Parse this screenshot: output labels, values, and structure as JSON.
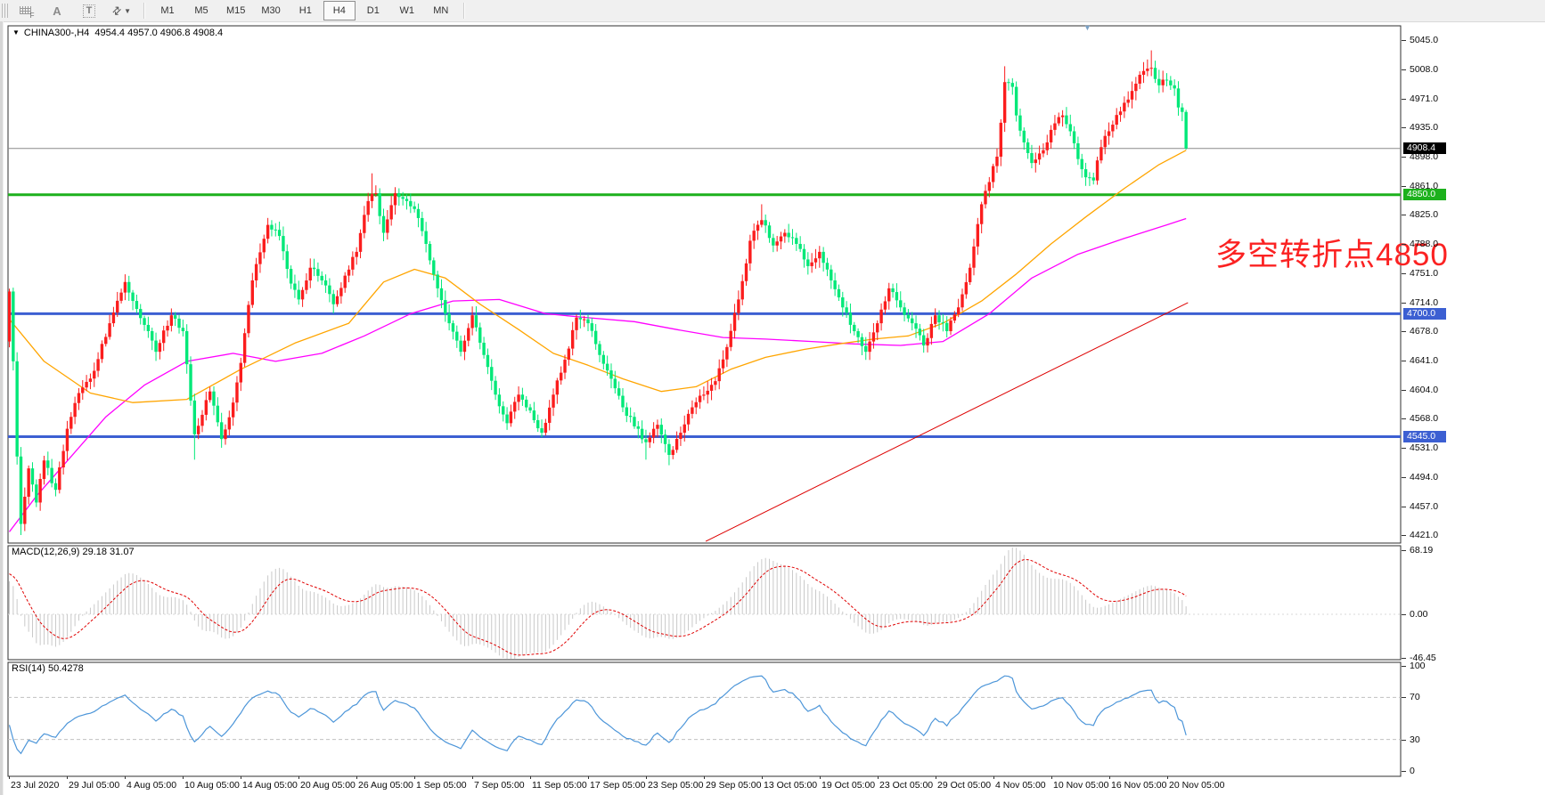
{
  "toolbar": {
    "a_label": "A",
    "t_label": "T",
    "timeframes": [
      "M1",
      "M5",
      "M15",
      "M30",
      "H1",
      "H4",
      "D1",
      "W1",
      "MN"
    ],
    "active_timeframe": "H4"
  },
  "chart": {
    "symbol": "CHINA300-,H4",
    "ohlc_text": "4954.4 4957.0 4906.8 4908.4",
    "triangle": "▼"
  },
  "annotation": {
    "text": "多空转折点4850",
    "color": "#fb2222"
  },
  "indicators": {
    "macd": {
      "label_text": "MACD(12,26,9) 29.18 31.07",
      "macd_value": 29.18,
      "signal_value": 31.07,
      "axis_labels": [
        "68.19",
        "0.00",
        "-46.45"
      ],
      "axis_values": [
        68.19,
        0,
        -46.45
      ]
    },
    "rsi": {
      "label_text": "RSI(14) 50.4278",
      "value": 50.4278,
      "axis_labels": [
        "100",
        "70",
        "30",
        "0"
      ],
      "axis_values": [
        100,
        70,
        30,
        0
      ],
      "levels": [
        70,
        30
      ]
    }
  },
  "chart_data": {
    "type": "candlestick+indicators",
    "symbol": "CHINA300",
    "period": "H4",
    "last_bar": {
      "open": 4954.4,
      "high": 4957.0,
      "low": 4906.8,
      "close": 4908.4
    },
    "y_axis_ticks": [
      "5045.0",
      "5008.0",
      "4971.0",
      "4935.0",
      "4898.0",
      "4861.0",
      "4825.0",
      "4788.0",
      "4751.0",
      "4714.0",
      "4678.0",
      "4641.0",
      "4604.0",
      "4568.0",
      "4531.0",
      "4494.0",
      "4457.0",
      "4421.0"
    ],
    "y_axis_values": [
      5045,
      5008,
      4971,
      4935,
      4898,
      4861,
      4825,
      4788,
      4751,
      4714,
      4678,
      4641,
      4604,
      4568,
      4531,
      4494,
      4457,
      4421
    ],
    "x_axis_labels": [
      "23 Jul 2020",
      "29 Jul 05:00",
      "4 Aug 05:00",
      "10 Aug 05:00",
      "14 Aug 05:00",
      "20 Aug 05:00",
      "26 Aug 05:00",
      "1 Sep 05:00",
      "7 Sep 05:00",
      "11 Sep 05:00",
      "17 Sep 05:00",
      "23 Sep 05:00",
      "29 Sep 05:00",
      "13 Oct 05:00",
      "19 Oct 05:00",
      "23 Oct 05:00",
      "29 Oct 05:00",
      "4 Nov 05:00",
      "10 Nov 05:00",
      "16 Nov 05:00",
      "20 Nov 05:00"
    ],
    "horizontal_levels": [
      {
        "price": 4850.0,
        "badge": "4850.0",
        "color": "#1db11d",
        "width": 3
      },
      {
        "price": 4700.0,
        "badge": "4700.0",
        "color": "#3c5fd2",
        "width": 3
      },
      {
        "price": 4545.0,
        "badge": "4545.0",
        "color": "#3c5fd2",
        "width": 3
      }
    ],
    "current_price_line": {
      "price": 4908.4,
      "badge": "4908.4",
      "line_color": "#8a8a8a",
      "badge_bg": "#000000"
    },
    "trendline": {
      "bar1": 180.5,
      "price1": 4413,
      "bar2": 305.5,
      "price2": 4714,
      "color": "#dd0000"
    },
    "close_path_anchors": [
      [
        0,
        4728
      ],
      [
        1,
        4640
      ],
      [
        2,
        4520
      ],
      [
        3,
        4435
      ],
      [
        5,
        4505
      ],
      [
        7,
        4462
      ],
      [
        9,
        4515
      ],
      [
        12,
        4478
      ],
      [
        15,
        4555
      ],
      [
        18,
        4600
      ],
      [
        22,
        4628
      ],
      [
        26,
        4688
      ],
      [
        30,
        4740
      ],
      [
        33,
        4706
      ],
      [
        36,
        4678
      ],
      [
        38,
        4652
      ],
      [
        42,
        4698
      ],
      [
        45,
        4678
      ],
      [
        48,
        4548
      ],
      [
        52,
        4602
      ],
      [
        55,
        4542
      ],
      [
        58,
        4588
      ],
      [
        60,
        4638
      ],
      [
        63,
        4742
      ],
      [
        67,
        4812
      ],
      [
        70,
        4798
      ],
      [
        73,
        4738
      ],
      [
        75,
        4718
      ],
      [
        78,
        4758
      ],
      [
        81,
        4742
      ],
      [
        84,
        4712
      ],
      [
        87,
        4748
      ],
      [
        90,
        4778
      ],
      [
        93,
        4842
      ],
      [
        95,
        4852
      ],
      [
        97,
        4802
      ],
      [
        100,
        4852
      ],
      [
        103,
        4842
      ],
      [
        105,
        4832
      ],
      [
        108,
        4788
      ],
      [
        111,
        4732
      ],
      [
        114,
        4688
      ],
      [
        117,
        4652
      ],
      [
        120,
        4698
      ],
      [
        123,
        4648
      ],
      [
        126,
        4598
      ],
      [
        129,
        4562
      ],
      [
        132,
        4598
      ],
      [
        135,
        4578
      ],
      [
        138,
        4550
      ],
      [
        141,
        4598
      ],
      [
        144,
        4642
      ],
      [
        147,
        4695
      ],
      [
        150,
        4688
      ],
      [
        153,
        4648
      ],
      [
        156,
        4618
      ],
      [
        159,
        4582
      ],
      [
        162,
        4558
      ],
      [
        165,
        4538
      ],
      [
        168,
        4560
      ],
      [
        171,
        4522
      ],
      [
        174,
        4550
      ],
      [
        177,
        4582
      ],
      [
        180,
        4598
      ],
      [
        183,
        4615
      ],
      [
        186,
        4658
      ],
      [
        189,
        4718
      ],
      [
        192,
        4792
      ],
      [
        195,
        4818
      ],
      [
        198,
        4786
      ],
      [
        201,
        4802
      ],
      [
        204,
        4788
      ],
      [
        207,
        4760
      ],
      [
        210,
        4778
      ],
      [
        213,
        4742
      ],
      [
        216,
        4708
      ],
      [
        219,
        4678
      ],
      [
        222,
        4652
      ],
      [
        225,
        4688
      ],
      [
        228,
        4732
      ],
      [
        231,
        4708
      ],
      [
        234,
        4688
      ],
      [
        237,
        4660
      ],
      [
        240,
        4698
      ],
      [
        243,
        4678
      ],
      [
        246,
        4708
      ],
      [
        249,
        4758
      ],
      [
        252,
        4838
      ],
      [
        254,
        4866
      ],
      [
        256,
        4898
      ],
      [
        258,
        4992
      ],
      [
        260,
        4986
      ],
      [
        261,
        4950
      ],
      [
        263,
        4916
      ],
      [
        265,
        4890
      ],
      [
        267,
        4902
      ],
      [
        269,
        4916
      ],
      [
        271,
        4940
      ],
      [
        273,
        4950
      ],
      [
        275,
        4930
      ],
      [
        277,
        4895
      ],
      [
        279,
        4872
      ],
      [
        281,
        4868
      ],
      [
        283,
        4910
      ],
      [
        285,
        4930
      ],
      [
        288,
        4955
      ],
      [
        290,
        4970
      ],
      [
        292,
        4990
      ],
      [
        294,
        5006
      ],
      [
        296,
        5010
      ],
      [
        298,
        4988
      ],
      [
        300,
        4994
      ],
      [
        302,
        4984
      ],
      [
        303,
        4960
      ],
      [
        304,
        4954.4
      ],
      [
        305,
        4908.4
      ]
    ],
    "forced_extremes": [
      [
        3,
        "low",
        4421
      ],
      [
        48,
        "low",
        4516
      ],
      [
        55,
        "low",
        4531
      ],
      [
        94,
        "high",
        4877
      ],
      [
        165,
        "low",
        4516
      ],
      [
        171,
        "low",
        4509
      ],
      [
        195,
        "high",
        4838
      ],
      [
        258,
        "high",
        5012
      ],
      [
        296,
        "high",
        5032
      ]
    ],
    "ma_fast": {
      "color": "#ffa500",
      "points": [
        [
          0,
          4693
        ],
        [
          9,
          4640
        ],
        [
          21,
          4600
        ],
        [
          32,
          4588
        ],
        [
          46,
          4592
        ],
        [
          60,
          4630
        ],
        [
          74,
          4663
        ],
        [
          88,
          4688
        ],
        [
          97,
          4740
        ],
        [
          105,
          4756
        ],
        [
          113,
          4745
        ],
        [
          122,
          4712
        ],
        [
          132,
          4680
        ],
        [
          141,
          4650
        ],
        [
          150,
          4635
        ],
        [
          159,
          4618
        ],
        [
          169,
          4602
        ],
        [
          178,
          4608
        ],
        [
          187,
          4630
        ],
        [
          196,
          4645
        ],
        [
          206,
          4655
        ],
        [
          215,
          4662
        ],
        [
          224,
          4668
        ],
        [
          233,
          4672
        ],
        [
          242,
          4688
        ],
        [
          252,
          4716
        ],
        [
          261,
          4750
        ],
        [
          270,
          4788
        ],
        [
          279,
          4822
        ],
        [
          289,
          4858
        ],
        [
          298,
          4888
        ],
        [
          305,
          4906
        ]
      ]
    },
    "ma_slow": {
      "color": "#ff00ff",
      "points": [
        [
          0,
          4425
        ],
        [
          7,
          4470
        ],
        [
          16,
          4520
        ],
        [
          25,
          4570
        ],
        [
          35,
          4610
        ],
        [
          46,
          4640
        ],
        [
          58,
          4650
        ],
        [
          69,
          4640
        ],
        [
          81,
          4650
        ],
        [
          92,
          4672
        ],
        [
          104,
          4700
        ],
        [
          115,
          4716
        ],
        [
          127,
          4718
        ],
        [
          139,
          4700
        ],
        [
          150,
          4695
        ],
        [
          162,
          4690
        ],
        [
          173,
          4680
        ],
        [
          185,
          4670
        ],
        [
          196,
          4668
        ],
        [
          208,
          4665
        ],
        [
          219,
          4662
        ],
        [
          231,
          4660
        ],
        [
          242,
          4665
        ],
        [
          254,
          4700
        ],
        [
          265,
          4745
        ],
        [
          277,
          4775
        ],
        [
          289,
          4795
        ],
        [
          300,
          4812
        ],
        [
          305,
          4820
        ]
      ]
    },
    "colors": {
      "bull": "#fb1d1d",
      "bear": "#00e878",
      "macd_histogram": "#c9c9c9",
      "macd_signal": "#e00000",
      "rsi_line": "#4d96d9",
      "rsi_levels_dash": "#c0c0c0"
    },
    "layout_note_values": {
      "bars_total": 306,
      "ylim": [
        4421,
        5045
      ],
      "macd_ylim": [
        -46.45,
        68.19
      ],
      "rsi_ylim": [
        0,
        100
      ]
    }
  }
}
